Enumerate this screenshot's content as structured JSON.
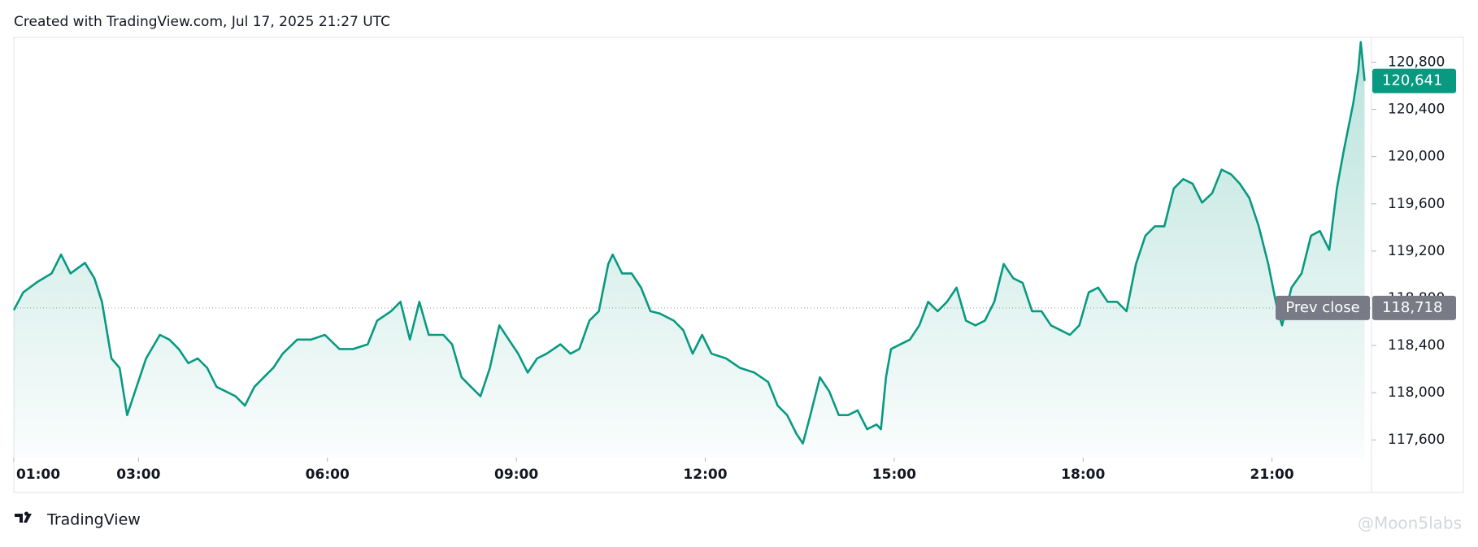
{
  "chart_data": {
    "type": "line",
    "title": "Created with TradingView.com, Jul 17, 2025 21:27 UTC",
    "x": [
      1.02,
      1.17,
      1.4,
      1.62,
      1.77,
      1.92,
      2.15,
      2.3,
      2.42,
      2.57,
      2.7,
      2.82,
      2.97,
      3.12,
      3.34,
      3.49,
      3.64,
      3.79,
      3.94,
      4.09,
      4.24,
      4.39,
      4.54,
      4.69,
      4.84,
      4.99,
      5.14,
      5.29,
      5.52,
      5.74,
      5.96,
      6.19,
      6.41,
      6.64,
      6.79,
      7.01,
      7.16,
      7.31,
      7.46,
      7.61,
      7.84,
      7.98,
      8.13,
      8.28,
      8.43,
      8.58,
      8.73,
      8.88,
      9.03,
      9.18,
      9.33,
      9.48,
      9.7,
      9.86,
      10.0,
      10.16,
      10.31,
      10.46,
      10.53,
      10.68,
      10.83,
      10.98,
      11.13,
      11.28,
      11.5,
      11.65,
      11.8,
      11.95,
      12.1,
      12.33,
      12.55,
      12.78,
      13.0,
      13.15,
      13.3,
      13.45,
      13.55,
      13.67,
      13.82,
      13.97,
      14.12,
      14.27,
      14.42,
      14.57,
      14.72,
      14.79,
      14.87,
      14.95,
      15.1,
      15.25,
      15.4,
      15.54,
      15.69,
      15.84,
      15.99,
      16.14,
      16.29,
      16.44,
      16.59,
      16.74,
      16.89,
      17.04,
      17.19,
      17.34,
      17.49,
      17.64,
      17.79,
      17.94,
      18.09,
      18.24,
      18.39,
      18.54,
      18.69,
      18.84,
      18.99,
      19.14,
      19.29,
      19.44,
      19.59,
      19.74,
      19.89,
      20.05,
      20.2,
      20.35,
      20.49,
      20.64,
      20.79,
      20.94,
      21.09,
      21.16,
      21.31,
      21.47,
      21.62,
      21.76,
      21.91,
      22.03,
      22.14,
      22.29,
      22.37,
      22.41,
      22.47
    ],
    "series": [
      {
        "color": "#089981",
        "values": [
          118700,
          118850,
          118940,
          119010,
          119170,
          119010,
          119100,
          118970,
          118770,
          118290,
          118210,
          117810,
          118050,
          118290,
          118490,
          118450,
          118370,
          118250,
          118290,
          118210,
          118050,
          118010,
          117970,
          117890,
          118050,
          118130,
          118210,
          118330,
          118450,
          118450,
          118490,
          118370,
          118370,
          118410,
          118610,
          118690,
          118770,
          118450,
          118770,
          118490,
          118490,
          118410,
          118130,
          118050,
          117970,
          118210,
          118570,
          118450,
          118330,
          118170,
          118290,
          118330,
          118410,
          118330,
          118370,
          118610,
          118690,
          119090,
          119170,
          119010,
          119010,
          118890,
          118690,
          118670,
          118610,
          118530,
          118330,
          118490,
          118330,
          118290,
          118210,
          118170,
          118090,
          117890,
          117810,
          117650,
          117570,
          117810,
          118130,
          118010,
          117810,
          117810,
          117850,
          117690,
          117730,
          117690,
          118130,
          118370,
          118410,
          118450,
          118570,
          118770,
          118690,
          118770,
          118890,
          118610,
          118570,
          118610,
          118770,
          119090,
          118970,
          118930,
          118690,
          118690,
          118570,
          118530,
          118490,
          118570,
          118850,
          118890,
          118770,
          118770,
          118690,
          119090,
          119330,
          119410,
          119410,
          119730,
          119810,
          119770,
          119610,
          119690,
          119890,
          119850,
          119770,
          119650,
          119410,
          119090,
          118690,
          118570,
          118890,
          119010,
          119330,
          119370,
          119210,
          119730,
          120050,
          120450,
          120730,
          120970,
          120641
        ]
      }
    ],
    "xlim": [
      1.02,
      22.58
    ],
    "xticks": [
      {
        "value": 1,
        "label": "01:00"
      },
      {
        "value": 3,
        "label": "03:00"
      },
      {
        "value": 6,
        "label": "06:00"
      },
      {
        "value": 9,
        "label": "09:00"
      },
      {
        "value": 12,
        "label": "12:00"
      },
      {
        "value": 15,
        "label": "15:00"
      },
      {
        "value": 18,
        "label": "18:00"
      },
      {
        "value": 21,
        "label": "21:00"
      }
    ],
    "ylim": [
      117450,
      121010
    ],
    "yticks": [
      {
        "value": 117600,
        "label": "117,600"
      },
      {
        "value": 118000,
        "label": "118,000"
      },
      {
        "value": 118400,
        "label": "118,400"
      },
      {
        "value": 118800,
        "label": "118,800"
      },
      {
        "value": 119200,
        "label": "119,200"
      },
      {
        "value": 119600,
        "label": "119,600"
      },
      {
        "value": 120000,
        "label": "120,000"
      },
      {
        "value": 120400,
        "label": "120,400"
      },
      {
        "value": 120800,
        "label": "120,800"
      }
    ],
    "grid": false,
    "last_price": {
      "value": 120641,
      "label": "120,641",
      "color": "#089981"
    },
    "prev_close": {
      "name": "Prev close",
      "value": 118718,
      "label": "118,718",
      "color": "#787b86"
    }
  },
  "footer": {
    "brand": "TradingView",
    "watermark": "@Moon5labs"
  }
}
